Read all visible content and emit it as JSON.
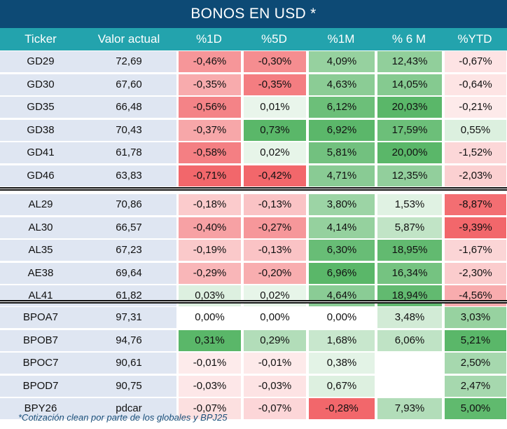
{
  "title": "BONOS EN USD *",
  "headers": [
    "Ticker",
    "Valor actual",
    "%1D",
    "%5D",
    "%1M",
    "% 6 M",
    "%YTD"
  ],
  "groups": [
    {
      "rows": [
        {
          "ticker": "GD29",
          "valor": "72,69",
          "d1": "-0,46%",
          "d5": "-0,30%",
          "m1": "4,09%",
          "m6": "12,43%",
          "ytd": "-0,67%"
        },
        {
          "ticker": "GD30",
          "valor": "67,60",
          "d1": "-0,35%",
          "d5": "-0,35%",
          "m1": "4,63%",
          "m6": "14,05%",
          "ytd": "-0,64%"
        },
        {
          "ticker": "GD35",
          "valor": "66,48",
          "d1": "-0,56%",
          "d5": "0,01%",
          "m1": "6,12%",
          "m6": "20,03%",
          "ytd": "-0,21%"
        },
        {
          "ticker": "GD38",
          "valor": "70,43",
          "d1": "-0,37%",
          "d5": "0,73%",
          "m1": "6,92%",
          "m6": "17,59%",
          "ytd": "0,55%"
        },
        {
          "ticker": "GD41",
          "valor": "61,78",
          "d1": "-0,58%",
          "d5": "0,02%",
          "m1": "5,81%",
          "m6": "20,00%",
          "ytd": "-1,52%"
        },
        {
          "ticker": "GD46",
          "valor": "63,83",
          "d1": "-0,71%",
          "d5": "-0,42%",
          "m1": "4,71%",
          "m6": "12,35%",
          "ytd": "-2,03%"
        }
      ]
    },
    {
      "rows": [
        {
          "ticker": "AL29",
          "valor": "70,86",
          "d1": "-0,18%",
          "d5": "-0,13%",
          "m1": "3,80%",
          "m6": "1,53%",
          "ytd": "-8,87%"
        },
        {
          "ticker": "AL30",
          "valor": "66,57",
          "d1": "-0,40%",
          "d5": "-0,27%",
          "m1": "4,14%",
          "m6": "5,87%",
          "ytd": "-9,39%"
        },
        {
          "ticker": "AL35",
          "valor": "67,23",
          "d1": "-0,19%",
          "d5": "-0,13%",
          "m1": "6,30%",
          "m6": "18,95%",
          "ytd": "-1,67%"
        },
        {
          "ticker": "AE38",
          "valor": "69,64",
          "d1": "-0,29%",
          "d5": "-0,20%",
          "m1": "6,96%",
          "m6": "16,34%",
          "ytd": "-2,30%"
        },
        {
          "ticker": "AL41",
          "valor": "61,82",
          "d1": "0,03%",
          "d5": "0,02%",
          "m1": "4,64%",
          "m6": "18,94%",
          "ytd": "-4,56%"
        }
      ]
    },
    {
      "rows": [
        {
          "ticker": "BPOA7",
          "valor": "97,31",
          "d1": "0,00%",
          "d5": "0,00%",
          "m1": "0,00%",
          "m6": "3,48%",
          "ytd": "3,03%"
        },
        {
          "ticker": "BPOB7",
          "valor": "94,76",
          "d1": "0,31%",
          "d5": "0,29%",
          "m1": "1,68%",
          "m6": "6,06%",
          "ytd": "5,21%"
        },
        {
          "ticker": "BPOC7",
          "valor": "90,61",
          "d1": "-0,01%",
          "d5": "-0,01%",
          "m1": "0,38%",
          "m6": "",
          "ytd": "2,50%"
        },
        {
          "ticker": "BPOD7",
          "valor": "90,75",
          "d1": "-0,03%",
          "d5": "-0,03%",
          "m1": "0,67%",
          "m6": "",
          "ytd": "2,47%"
        },
        {
          "ticker": "BPY26",
          "valor": "pdcar",
          "d1": "-0,07%",
          "d5": "-0,07%",
          "m1": "-0,28%",
          "m6": "7,93%",
          "ytd": "5,00%"
        }
      ]
    }
  ],
  "footnote": "*Cotización clean por parte de los globales y BPJ25",
  "colors": {
    "title_bg": "#0d4a75",
    "header_bg": "#23a3ad",
    "left_bg": "#dfe6f2",
    "heat_red": "#f2676b",
    "heat_green": "#5ab769"
  }
}
